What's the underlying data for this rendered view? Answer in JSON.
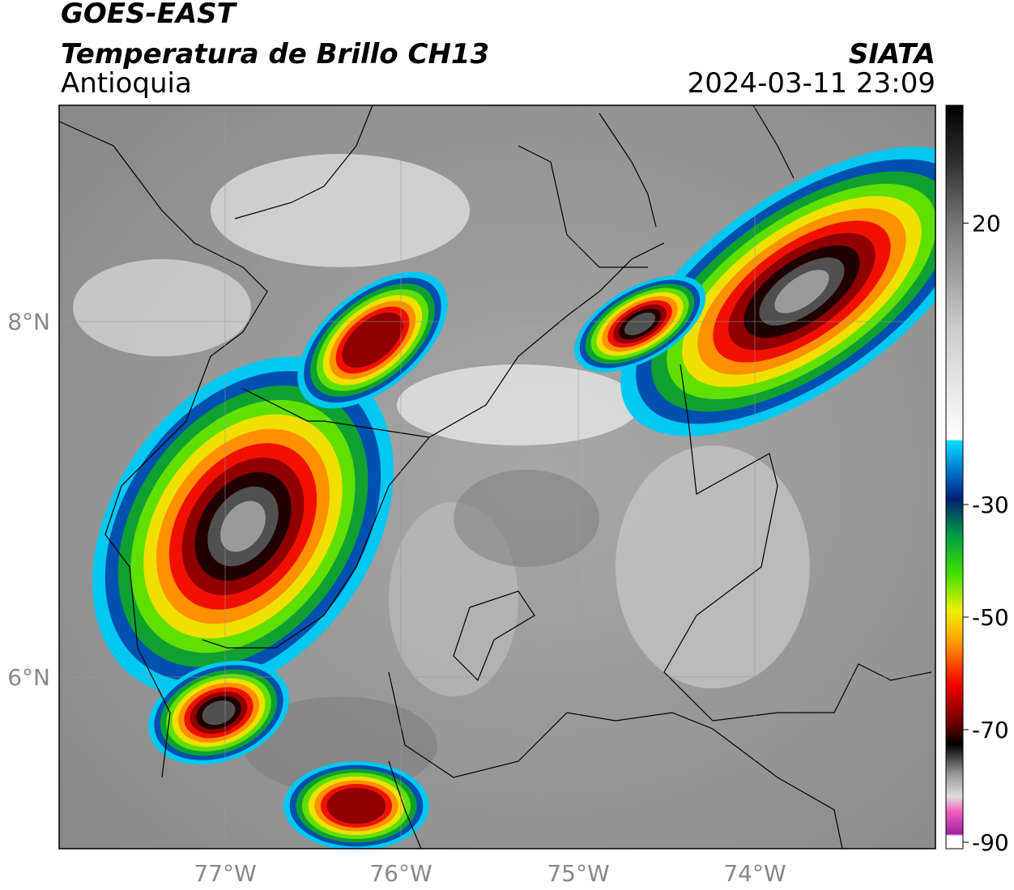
{
  "header": {
    "satellite": "GOES-EAST",
    "product": "Temperatura de Brillo CH13",
    "region": "Antioquia",
    "source": "SIATA",
    "datetime": "2024-03-11 23:09"
  },
  "map": {
    "lat_labels": [
      "8°N",
      "6°N"
    ],
    "lon_labels": [
      "77°W",
      "76°W",
      "75°W",
      "74°W"
    ]
  },
  "colorbar": {
    "ticks": [
      20,
      -30,
      -50,
      -70,
      -90
    ]
  }
}
